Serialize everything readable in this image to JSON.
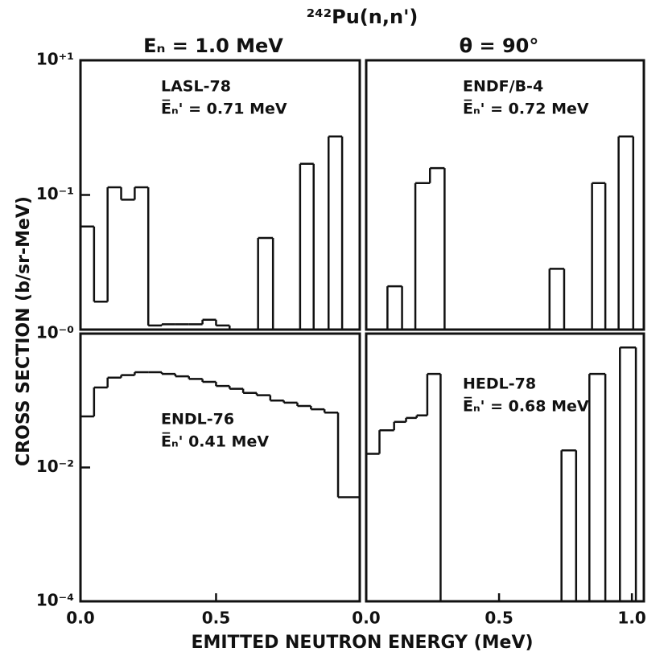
{
  "figure": {
    "title": "²⁴²Pu(n,n')",
    "left_heading": "Eₙ = 1.0 MeV",
    "right_heading": "θ = 90°",
    "ylabel": "CROSS SECTION (b/sr-MeV)",
    "xlabel": "EMITTED NEUTRON ENERGY (MeV)"
  },
  "chart_data": [
    {
      "type": "histogram",
      "annotation": [
        "LASL-78",
        "E̅ₙ' = 0.71 MeV"
      ],
      "log_y": true,
      "bins": [
        0,
        0.05,
        0.1,
        0.15,
        0.2,
        0.25,
        0.3,
        0.35,
        0.4,
        0.45,
        0.5,
        0.55,
        0.655,
        0.71,
        0.81,
        0.86,
        0.915,
        0.965
      ],
      "values": [
        0.034,
        0.0026,
        0.13,
        0.085,
        0.13,
        0.00115,
        0.0012,
        0.0012,
        0.0012,
        0.0014,
        0.00115,
        null,
        0.023,
        null,
        0.29,
        null,
        0.74
      ],
      "xlim": [
        0,
        1.03
      ],
      "ylim": [
        0.001,
        10
      ],
      "yticks": [
        {
          "value": 10,
          "label": "10⁺¹"
        },
        {
          "value": 0.1,
          "label": "10⁻¹"
        }
      ]
    },
    {
      "type": "histogram",
      "annotation": [
        "ENDF/B-4",
        "E̅ₙ' = 0.72 MeV"
      ],
      "log_y": true,
      "bins": [
        0.08,
        0.135,
        0.185,
        0.24,
        0.295,
        0.69,
        0.745,
        0.85,
        0.9,
        0.95,
        1.005
      ],
      "values": [
        0.0044,
        null,
        0.15,
        0.25,
        null,
        0.008,
        null,
        0.15,
        null,
        0.74
      ],
      "xlim": [
        0,
        1.045
      ],
      "ylim": [
        0.001,
        10
      ]
    },
    {
      "type": "histogram",
      "annotation": [
        "ENDL-76",
        "E̅ₙ' 0.41 MeV"
      ],
      "log_y": true,
      "bins": [
        0,
        0.05,
        0.1,
        0.15,
        0.2,
        0.25,
        0.3,
        0.35,
        0.4,
        0.45,
        0.5,
        0.55,
        0.6,
        0.65,
        0.7,
        0.75,
        0.8,
        0.85,
        0.9,
        0.95,
        1.03
      ],
      "values": [
        0.058,
        0.157,
        0.22,
        0.24,
        0.265,
        0.265,
        0.25,
        0.23,
        0.21,
        0.19,
        0.165,
        0.15,
        0.13,
        0.12,
        0.1,
        0.093,
        0.083,
        0.074,
        0.066,
        0.0036
      ],
      "xlim": [
        0,
        1.03
      ],
      "ylim": [
        0.0001,
        1
      ],
      "yticks": [
        {
          "value": 1,
          "label": "10⁻⁰"
        },
        {
          "value": 0.01,
          "label": "10⁻²"
        },
        {
          "value": 0.0001,
          "label": "10⁻⁴"
        }
      ],
      "xticks": [
        {
          "value": 0,
          "label": "0.0"
        },
        {
          "value": 0.5,
          "label": "0.5"
        }
      ]
    },
    {
      "type": "histogram",
      "annotation": [
        "HEDL-78",
        "E̅ₙ' = 0.68 MeV"
      ],
      "log_y": true,
      "bins": [
        0,
        0.05,
        0.105,
        0.15,
        0.19,
        0.23,
        0.28,
        0.735,
        0.79,
        0.84,
        0.9,
        0.955,
        1.015
      ],
      "values": [
        0.016,
        0.036,
        0.048,
        0.055,
        0.06,
        0.25,
        null,
        0.018,
        null,
        0.25,
        null,
        0.62
      ],
      "xlim": [
        0,
        1.045
      ],
      "ylim": [
        0.0001,
        1
      ],
      "xticks": [
        {
          "value": 0,
          "label": "0.0"
        },
        {
          "value": 0.5,
          "label": "0.5"
        },
        {
          "value": 1,
          "label": "1.0"
        }
      ]
    }
  ]
}
